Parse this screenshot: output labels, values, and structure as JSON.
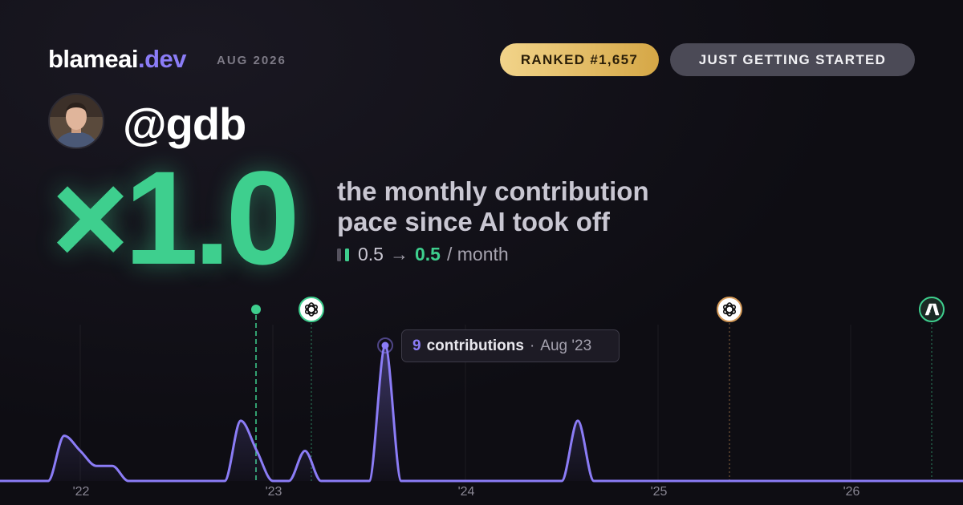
{
  "header": {
    "brand": "blameai",
    "brand_tld": ".dev",
    "date": "AUG 2026",
    "rank_badge": "RANKED #1,657",
    "status_badge": "JUST GETTING STARTED"
  },
  "profile": {
    "handle": "@gdb"
  },
  "headline": {
    "multiplier": "×1.0",
    "caption_line1": "the monthly contribution",
    "caption_line2": "pace since AI took off",
    "before": "0.5",
    "arrow": "→",
    "after": "0.5",
    "unit": "/ month"
  },
  "chart_data": {
    "type": "line",
    "categories": [
      null,
      null,
      null,
      null,
      null,
      "'22",
      null,
      null,
      null,
      null,
      null,
      null,
      null,
      null,
      null,
      null,
      null,
      "'23",
      null,
      null,
      null,
      null,
      null,
      null,
      null,
      null,
      null,
      null,
      null,
      "'24",
      null,
      null,
      null,
      null,
      null,
      null,
      null,
      null,
      null,
      null,
      null,
      "'25",
      null,
      null,
      null,
      null,
      null,
      null,
      null,
      null,
      null,
      null,
      null,
      "'26",
      null,
      null,
      null,
      null,
      null,
      null,
      null
    ],
    "series": [
      {
        "name": "contributions",
        "color": "#8b7cf6",
        "values": [
          0,
          0,
          0,
          0,
          3,
          2,
          1,
          1,
          0,
          0,
          0,
          0,
          0,
          0,
          0,
          4,
          2,
          0,
          0,
          2,
          0,
          0,
          0,
          0,
          9,
          0,
          0,
          0,
          0,
          0,
          0,
          0,
          0,
          0,
          0,
          0,
          4,
          0,
          0,
          0,
          0,
          0,
          0,
          0,
          0,
          0,
          0,
          0,
          0,
          0,
          0,
          0,
          0,
          0,
          0,
          0,
          0,
          0,
          0,
          0,
          0
        ]
      }
    ],
    "ylim": [
      0,
      9
    ],
    "tooltip_date": "Aug '23"
  }
}
